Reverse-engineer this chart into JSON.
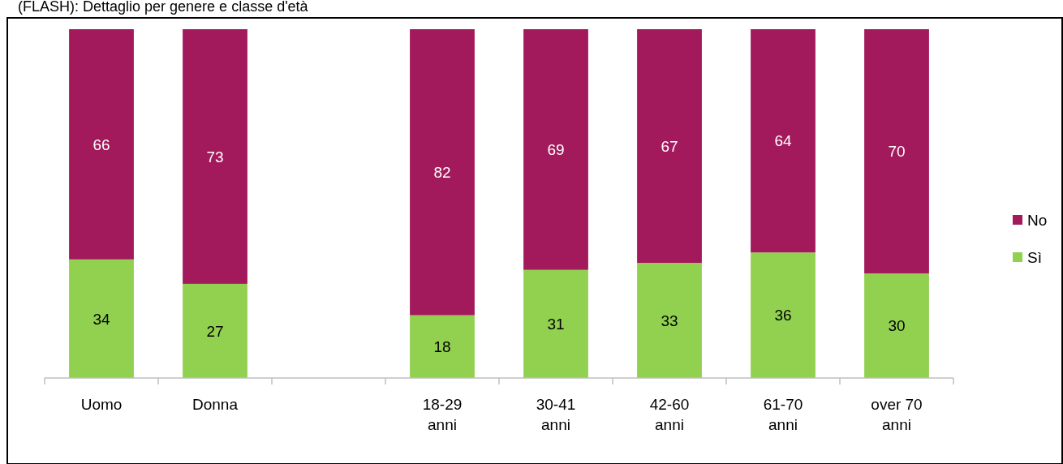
{
  "chart_data": {
    "type": "bar",
    "title": "(FLASH): Dettaglio per genere e classe d'età",
    "stacked": true,
    "categories": [
      "Uomo",
      "Donna",
      null,
      "18-29 anni",
      "30-41 anni",
      "42-60 anni",
      "61-70 anni",
      "over 70 anni"
    ],
    "series": [
      {
        "name": "Sì",
        "color": "#92d050",
        "values": [
          34,
          27,
          null,
          18,
          31,
          33,
          36,
          30
        ]
      },
      {
        "name": "No",
        "color": "#a21a5b",
        "values": [
          66,
          73,
          null,
          82,
          69,
          67,
          64,
          70
        ]
      }
    ],
    "ylim": [
      0,
      100
    ],
    "tick_labels": "x",
    "data_labels": true,
    "legend": "right"
  }
}
